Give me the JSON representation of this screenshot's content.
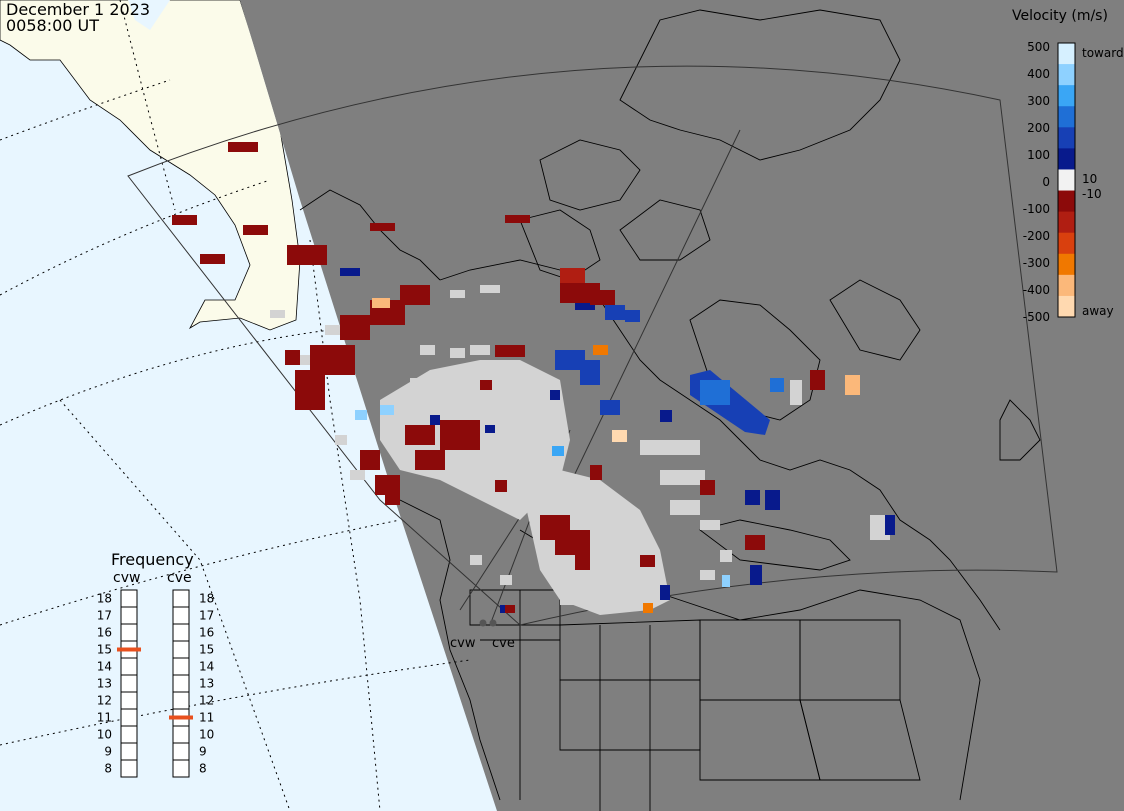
{
  "header": {
    "date": "December 1 2023",
    "time": "0058:00 UT"
  },
  "velocity_scale": {
    "title": "Velocity (m/s)",
    "ticks": [
      "500",
      "400",
      "300",
      "200",
      "100",
      "10",
      "0",
      "-10",
      "-100",
      "-200",
      "-300",
      "-400",
      "-500"
    ],
    "toward_label": "toward",
    "away_label": "away",
    "colors": [
      "#d6f0ff",
      "#8ed1ff",
      "#3aa6f5",
      "#1f6fd6",
      "#1740b5",
      "#081a8c",
      "#f2f2f2",
      "#8c0a0a",
      "#b01e12",
      "#d9400e",
      "#f07800",
      "#fbb87a",
      "#ffd9b0"
    ]
  },
  "frequency_panel": {
    "title": "Frequency",
    "radars": [
      {
        "name": "cvw",
        "frequency_mhz": 15
      },
      {
        "name": "cve",
        "frequency_mhz": 11
      }
    ],
    "scale_labels": [
      "18",
      "17",
      "16",
      "15",
      "14",
      "13",
      "12",
      "11",
      "10",
      "9",
      "8"
    ]
  },
  "site_labels": [
    "cvw",
    "cve"
  ],
  "colors": {
    "night": "#7f7f7f",
    "ocean": "#e8f6ff",
    "land_day": "#fbfbea",
    "ground_scatter": "#d3d3d3",
    "frequency_marker": "#e8501e",
    "coastline": "#000000"
  }
}
